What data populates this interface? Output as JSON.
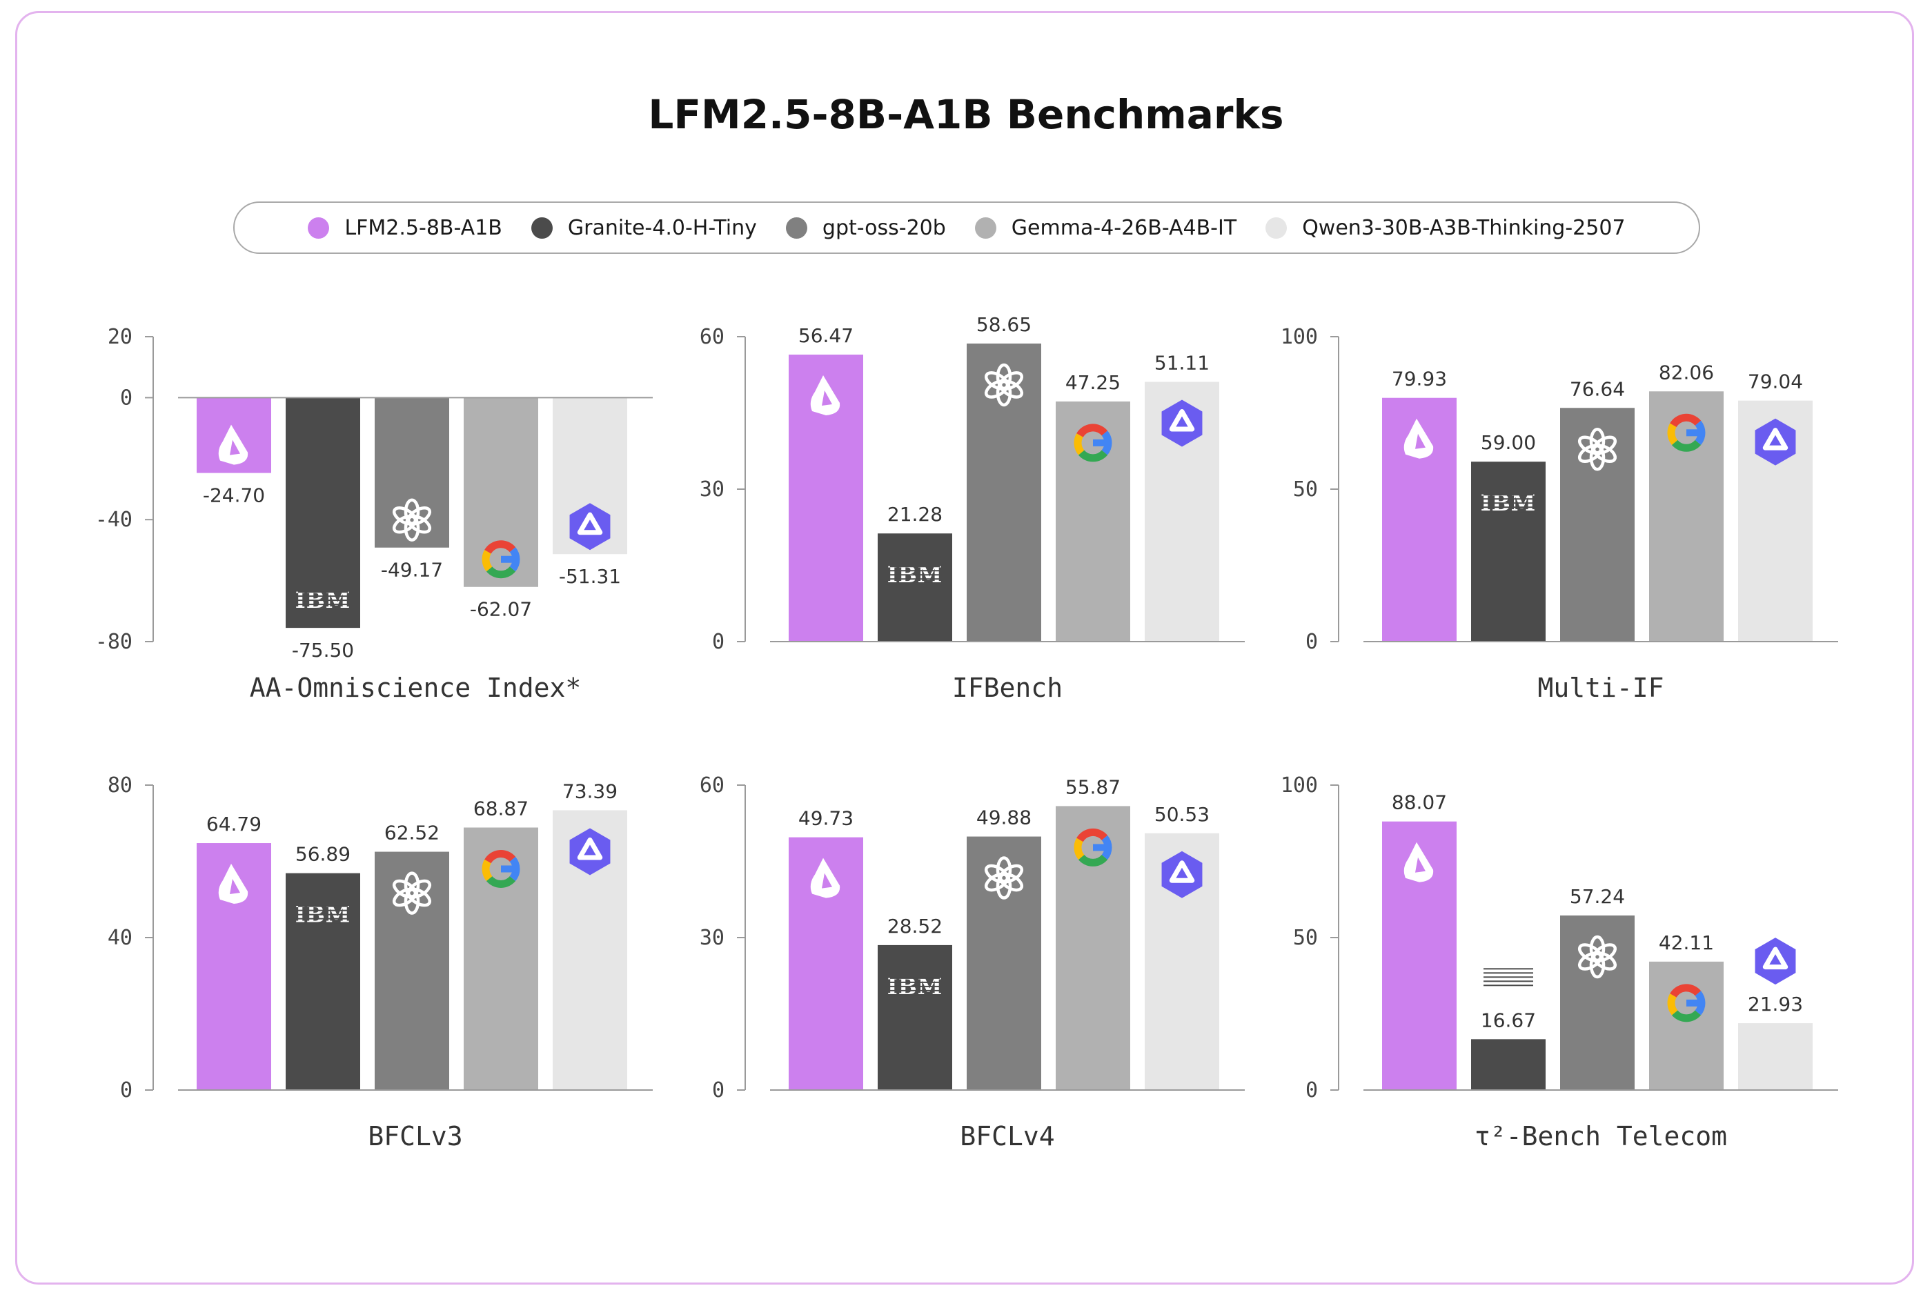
{
  "title": "LFM2.5-8B-A1B Benchmarks",
  "legend": [
    {
      "label": "LFM2.5-8B-A1B",
      "color": "#cc80ee",
      "icon": "liquid-logo-icon"
    },
    {
      "label": "Granite-4.0-H-Tiny",
      "color": "#4b4b4b",
      "icon": "ibm-logo-icon"
    },
    {
      "label": "gpt-oss-20b",
      "color": "#808080",
      "icon": "openai-logo-icon"
    },
    {
      "label": "Gemma-4-26B-A4B-IT",
      "color": "#b1b1b1",
      "icon": "google-logo-icon"
    },
    {
      "label": "Qwen3-30B-A3B-Thinking-2507",
      "color": "#e6e6e6",
      "icon": "qwen-logo-icon"
    }
  ],
  "chart_data": [
    {
      "type": "bar",
      "title": "AA-Omniscience Index*",
      "ylim": [
        -80,
        20
      ],
      "yticks": [
        "20",
        "0",
        "-40",
        "-80"
      ],
      "categories": [
        "LFM2.5-8B-A1B",
        "Granite-4.0-H-Tiny",
        "gpt-oss-20b",
        "Gemma-4-26B-A4B-IT",
        "Qwen3-30B-A3B-Thinking-2507"
      ],
      "values": [
        -24.7,
        -75.5,
        -49.17,
        -62.07,
        -51.31
      ],
      "labels": [
        "-24.70",
        "-75.50",
        "-49.17",
        "-62.07",
        "-51.31"
      ]
    },
    {
      "type": "bar",
      "title": "IFBench",
      "ylim": [
        0,
        60
      ],
      "yticks": [
        "60",
        "30",
        "0"
      ],
      "categories": [
        "LFM2.5-8B-A1B",
        "Granite-4.0-H-Tiny",
        "gpt-oss-20b",
        "Gemma-4-26B-A4B-IT",
        "Qwen3-30B-A3B-Thinking-2507"
      ],
      "values": [
        56.47,
        21.28,
        58.65,
        47.25,
        51.11
      ],
      "labels": [
        "56.47",
        "21.28",
        "58.65",
        "47.25",
        "51.11"
      ]
    },
    {
      "type": "bar",
      "title": "Multi-IF",
      "ylim": [
        0,
        100
      ],
      "yticks": [
        "100",
        "50",
        "0"
      ],
      "categories": [
        "LFM2.5-8B-A1B",
        "Granite-4.0-H-Tiny",
        "gpt-oss-20b",
        "Gemma-4-26B-A4B-IT",
        "Qwen3-30B-A3B-Thinking-2507"
      ],
      "values": [
        79.93,
        59.0,
        76.64,
        82.06,
        79.04
      ],
      "labels": [
        "79.93",
        "59.00",
        "76.64",
        "82.06",
        "79.04"
      ]
    },
    {
      "type": "bar",
      "title": "BFCLv3",
      "ylim": [
        0,
        80
      ],
      "yticks": [
        "80",
        "40",
        "0"
      ],
      "categories": [
        "LFM2.5-8B-A1B",
        "Granite-4.0-H-Tiny",
        "gpt-oss-20b",
        "Gemma-4-26B-A4B-IT",
        "Qwen3-30B-A3B-Thinking-2507"
      ],
      "values": [
        64.79,
        56.89,
        62.52,
        68.87,
        73.39
      ],
      "labels": [
        "64.79",
        "56.89",
        "62.52",
        "68.87",
        "73.39"
      ]
    },
    {
      "type": "bar",
      "title": "BFCLv4",
      "ylim": [
        0,
        60
      ],
      "yticks": [
        "60",
        "30",
        "0"
      ],
      "categories": [
        "LFM2.5-8B-A1B",
        "Granite-4.0-H-Tiny",
        "gpt-oss-20b",
        "Gemma-4-26B-A4B-IT",
        "Qwen3-30B-A3B-Thinking-2507"
      ],
      "values": [
        49.73,
        28.52,
        49.88,
        55.87,
        50.53
      ],
      "labels": [
        "49.73",
        "28.52",
        "49.88",
        "55.87",
        "50.53"
      ]
    },
    {
      "type": "bar",
      "title": "τ²-Bench Telecom",
      "ylim": [
        0,
        100
      ],
      "yticks": [
        "100",
        "50",
        "0"
      ],
      "categories": [
        "LFM2.5-8B-A1B",
        "Granite-4.0-H-Tiny",
        "gpt-oss-20b",
        "Gemma-4-26B-A4B-IT",
        "Qwen3-30B-A3B-Thinking-2507"
      ],
      "values": [
        88.07,
        16.67,
        57.24,
        42.11,
        21.93
      ],
      "labels": [
        "88.07",
        "16.67",
        "57.24",
        "42.11",
        "21.93"
      ]
    }
  ]
}
